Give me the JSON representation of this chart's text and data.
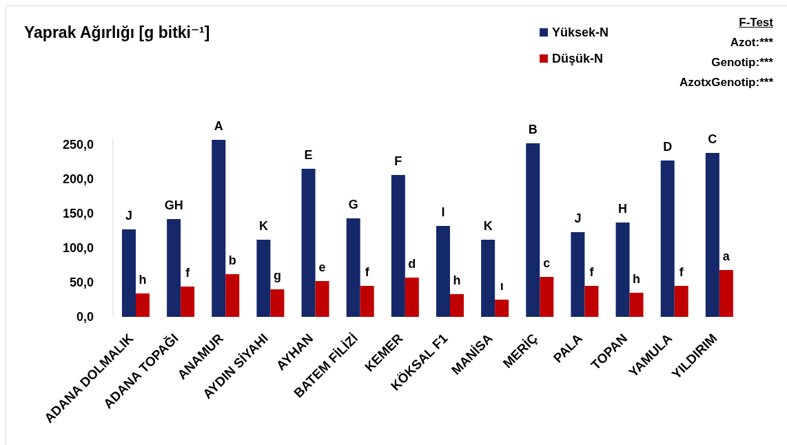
{
  "chart_data": {
    "type": "bar",
    "title": "Yaprak Ağırlığı [g bitki⁻¹]",
    "categories": [
      "ADANA DOLMALIK",
      "ADANA TOPAĞI",
      "ANAMUR",
      "AYDIN SİYAHI",
      "AYHAN",
      "BATEM FİLİZİ",
      "KEMER",
      "KÖKSAL F1",
      "MANİSA",
      "MERİÇ",
      "PALA",
      "TOPAN",
      "YAMULA",
      "YILDIRIM"
    ],
    "series": [
      {
        "name": "Yüksek-N",
        "color": "#14286a",
        "values": [
          127,
          142,
          257,
          112,
          215,
          143,
          206,
          132,
          112,
          252,
          123,
          137,
          227,
          238
        ],
        "value_labels": [
          "J",
          "GH",
          "A",
          "K",
          "E",
          "G",
          "F",
          "I",
          "K",
          "B",
          "J",
          "H",
          "D",
          "C"
        ]
      },
      {
        "name": "Düşük-N",
        "color": "#c00000",
        "values": [
          34,
          44,
          62,
          40,
          52,
          45,
          57,
          33,
          25,
          58,
          45,
          35,
          45,
          68
        ],
        "value_labels": [
          "h",
          "f",
          "b",
          "g",
          "e",
          "f",
          "d",
          "h",
          "ı",
          "c",
          "f",
          "h",
          "f",
          "a"
        ]
      }
    ],
    "ylim": [
      0,
      260
    ],
    "yticks": [
      {
        "value": 0,
        "label": "0,0"
      },
      {
        "value": 50,
        "label": "50,0"
      },
      {
        "value": 100,
        "label": "100,0"
      },
      {
        "value": 150,
        "label": "150,0"
      },
      {
        "value": 200,
        "label": "200,0"
      },
      {
        "value": 250,
        "label": "250,0"
      }
    ],
    "legend": "top right",
    "annotations": [
      "F-Test",
      "Azot:***",
      "Genotip:***",
      "AzotxGenotip:***"
    ]
  }
}
